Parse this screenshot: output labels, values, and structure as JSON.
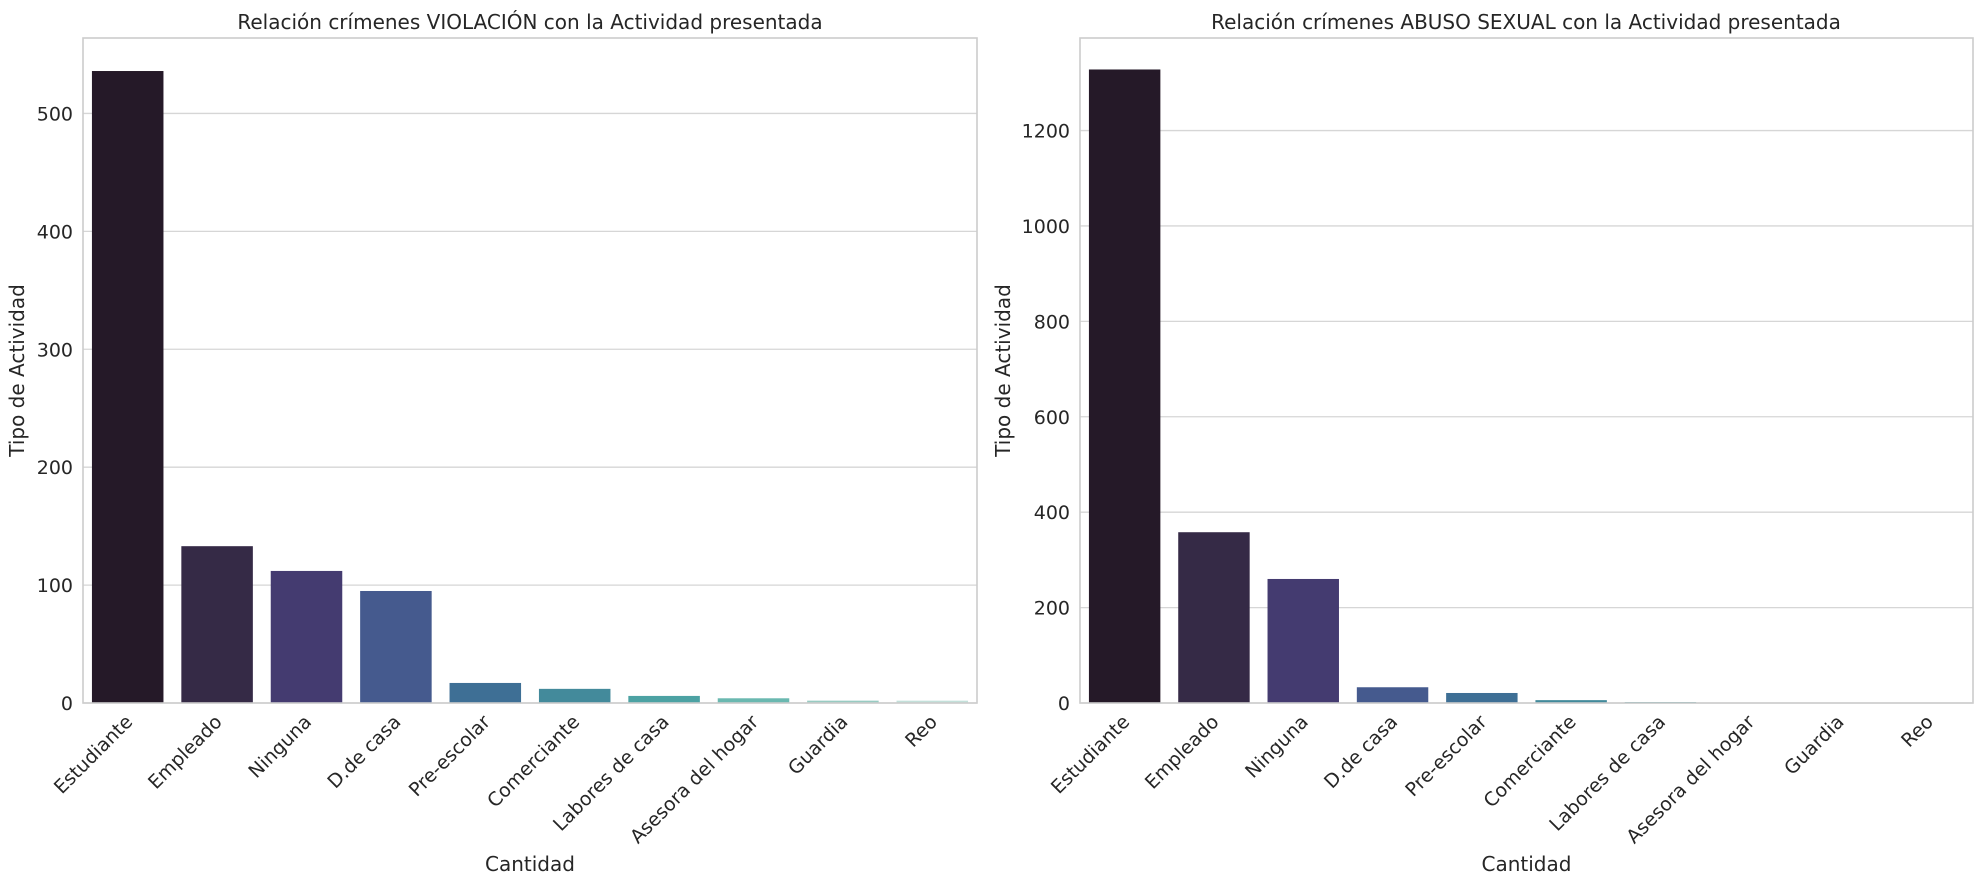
{
  "chart_data": [
    {
      "type": "bar",
      "title": "Relación crímenes VIOLACIÓN con la Actividad presentada",
      "xlabel": "Cantidad",
      "ylabel": "Tipo de Actividad",
      "categories": [
        "Estudiante",
        "Empleado",
        "Ninguna",
        "D.de casa",
        "Pre-escolar",
        "Comerciante",
        "Labores de casa",
        "Asesora del hogar",
        "Guardia",
        "Reo"
      ],
      "values": [
        536,
        133,
        112,
        95,
        17,
        12,
        6,
        4,
        2,
        2
      ],
      "ylim": [
        0,
        564
      ],
      "yticks": [
        0,
        100,
        200,
        300,
        400,
        500
      ],
      "grid": true,
      "colors": [
        "#251928",
        "#352a46",
        "#443b70",
        "#455a8e",
        "#3e6f95",
        "#438a9b",
        "#4ca2a3",
        "#6ab8b0",
        "#98cbc2",
        "#c3e0da"
      ]
    },
    {
      "type": "bar",
      "title": "Relación crímenes ABUSO SEXUAL con la Actividad presentada",
      "xlabel": "Cantidad",
      "ylabel": "Tipo de Actividad",
      "categories": [
        "Estudiante",
        "Empleado",
        "Ninguna",
        "D.de casa",
        "Pre-escolar",
        "Comerciante",
        "Labores de casa",
        "Asesora del hogar",
        "Guardia",
        "Reo"
      ],
      "values": [
        1328,
        358,
        260,
        33,
        21,
        6,
        2,
        1,
        0,
        0
      ],
      "ylim": [
        0,
        1394
      ],
      "yticks": [
        0,
        200,
        400,
        600,
        800,
        1000,
        1200
      ],
      "grid": true,
      "colors": [
        "#251928",
        "#352a46",
        "#443b70",
        "#455a8e",
        "#3e6f95",
        "#438a9b",
        "#4ca2a3",
        "#6ab8b0",
        "#98cbc2",
        "#c3e0da"
      ]
    }
  ]
}
